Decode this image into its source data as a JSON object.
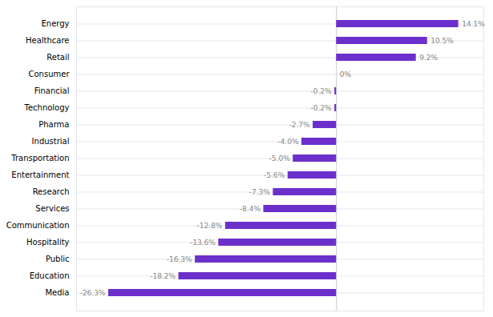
{
  "chart_data": {
    "type": "bar",
    "orientation": "horizontal",
    "categories": [
      "Media",
      "Education",
      "Public",
      "Hospitality",
      "Communication",
      "Services",
      "Research",
      "Entertainment",
      "Transportation",
      "Industrial",
      "Pharma",
      "Technology",
      "Financial",
      "Consumer",
      "Retail",
      "Healthcare",
      "Energy"
    ],
    "values": [
      -26.3,
      -18.2,
      -16.3,
      -13.6,
      -12.8,
      -8.4,
      -7.3,
      -5.6,
      -5.0,
      -4.0,
      -2.7,
      -0.2,
      -0.2,
      0.0,
      9.2,
      10.5,
      14.1
    ],
    "value_labels": [
      "-26.3%",
      "-18.2%",
      "-16.3%",
      "-13.6%",
      "-12.8%",
      "-8.4%",
      "-7.3%",
      "-5.6%",
      "-5.0%",
      "-4.0%",
      "-2.7%",
      "-0.2%",
      "-0.2%",
      "0%",
      "9.2%",
      "10.5%",
      "14.1%"
    ],
    "color": "#6B30CC",
    "xlim": [
      -30,
      17
    ],
    "data_labels": true,
    "tick_labels": "y"
  }
}
